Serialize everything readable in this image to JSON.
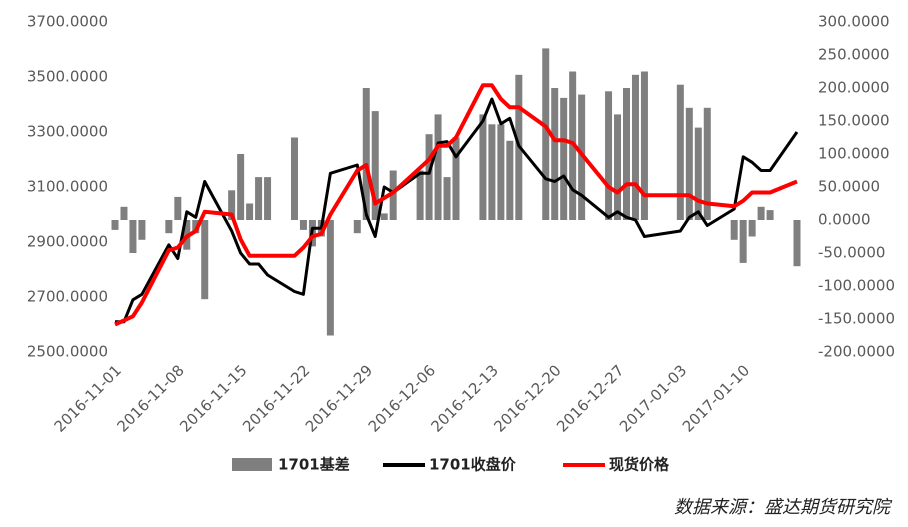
{
  "chart_data": {
    "type": "bar-line-dual",
    "x": [
      "2016-11-01",
      "2016-11-02",
      "2016-11-03",
      "2016-11-04",
      "2016-11-07",
      "2016-11-08",
      "2016-11-09",
      "2016-11-10",
      "2016-11-11",
      "2016-11-14",
      "2016-11-15",
      "2016-11-16",
      "2016-11-17",
      "2016-11-18",
      "2016-11-21",
      "2016-11-22",
      "2016-11-23",
      "2016-11-24",
      "2016-11-25",
      "2016-11-28",
      "2016-11-29",
      "2016-11-30",
      "2016-12-01",
      "2016-12-02",
      "2016-12-05",
      "2016-12-06",
      "2016-12-07",
      "2016-12-08",
      "2016-12-09",
      "2016-12-12",
      "2016-12-13",
      "2016-12-14",
      "2016-12-15",
      "2016-12-16",
      "2016-12-19",
      "2016-12-20",
      "2016-12-21",
      "2016-12-22",
      "2016-12-23",
      "2016-12-26",
      "2016-12-27",
      "2016-12-28",
      "2016-12-29",
      "2016-12-30",
      "2017-01-03",
      "2017-01-04",
      "2017-01-05",
      "2017-01-06",
      "2017-01-09",
      "2017-01-10",
      "2017-01-11",
      "2017-01-12",
      "2017-01-13",
      "2017-01-16"
    ],
    "xlim": [
      "2016-11-01",
      "2017-01-16"
    ],
    "xticks": [
      "2016-11-01",
      "2016-11-08",
      "2016-11-15",
      "2016-11-22",
      "2016-11-29",
      "2016-12-06",
      "2016-12-13",
      "2016-12-20",
      "2016-12-27",
      "2017-01-03",
      "2017-01-10"
    ],
    "series": [
      {
        "name": "1701基差",
        "kind": "bar",
        "axis": "y2",
        "color": "#7f7f7f",
        "values": [
          -15,
          20,
          -50,
          -30,
          -20,
          35,
          -45,
          -20,
          -120,
          45,
          100,
          25,
          65,
          65,
          125,
          -15,
          -40,
          -25,
          -175,
          -20,
          200,
          165,
          10,
          75,
          75,
          130,
          160,
          65,
          125,
          160,
          145,
          145,
          120,
          220,
          260,
          200,
          185,
          225,
          190,
          195,
          160,
          200,
          220,
          225,
          205,
          170,
          140,
          170,
          -30,
          -65,
          -25,
          20,
          15,
          -70
        ]
      },
      {
        "name": "1701收盘价",
        "kind": "line",
        "color": "#000000",
        "values": [
          2610,
          2610,
          2690,
          2710,
          2890,
          2840,
          3010,
          2990,
          3120,
          2940,
          2860,
          2820,
          2820,
          2780,
          2720,
          2710,
          2950,
          2950,
          3150,
          3180,
          3000,
          2920,
          3100,
          3080,
          3150,
          3150,
          3260,
          3265,
          3210,
          3340,
          3420,
          3330,
          3350,
          3250,
          3130,
          3120,
          3140,
          3090,
          3070,
          2990,
          3010,
          2990,
          2980,
          2920,
          2940,
          2990,
          3010,
          2960,
          3020,
          3210,
          3190,
          3160,
          3160,
          3300
        ]
      },
      {
        "name": "现货价格",
        "kind": "line",
        "color": "#ff0000",
        "values": [
          2600,
          2615,
          2630,
          2680,
          2870,
          2880,
          2920,
          2940,
          3010,
          3000,
          2910,
          2850,
          2850,
          2850,
          2850,
          2880,
          2920,
          2930,
          3000,
          3160,
          3180,
          3040,
          3060,
          3080,
          3170,
          3200,
          3250,
          3250,
          3280,
          3470,
          3470,
          3420,
          3390,
          3390,
          3320,
          3270,
          3270,
          3260,
          3220,
          3100,
          3080,
          3110,
          3110,
          3070,
          3070,
          3070,
          3050,
          3040,
          3030,
          3050,
          3080,
          3080,
          3080,
          3120
        ]
      }
    ],
    "ylim": [
      2500,
      3700
    ],
    "yticks": [
      {
        "value": 2500,
        "label": "2500.0000"
      },
      {
        "value": 2700,
        "label": "2700.0000"
      },
      {
        "value": 2900,
        "label": "2900.0000"
      },
      {
        "value": 3100,
        "label": "3100.0000"
      },
      {
        "value": 3300,
        "label": "3300.0000"
      },
      {
        "value": 3500,
        "label": "3500.0000"
      },
      {
        "value": 3700,
        "label": "3700.0000"
      }
    ],
    "y2lim": [
      -200,
      300
    ],
    "y2ticks": [
      {
        "value": -200,
        "label": "-200.0000"
      },
      {
        "value": -150,
        "label": "-150.0000"
      },
      {
        "value": -100,
        "label": "-100.0000"
      },
      {
        "value": -50,
        "label": "-50.0000"
      },
      {
        "value": 0,
        "label": "0.0000"
      },
      {
        "value": 50,
        "label": "50.0000"
      },
      {
        "value": 100,
        "label": "100.0000"
      },
      {
        "value": 150,
        "label": "150.0000"
      },
      {
        "value": 200,
        "label": "200.0000"
      },
      {
        "value": 250,
        "label": "250.0000"
      },
      {
        "value": 300,
        "label": "300.0000"
      }
    ],
    "source": "数据来源：盛达期货研究院"
  }
}
